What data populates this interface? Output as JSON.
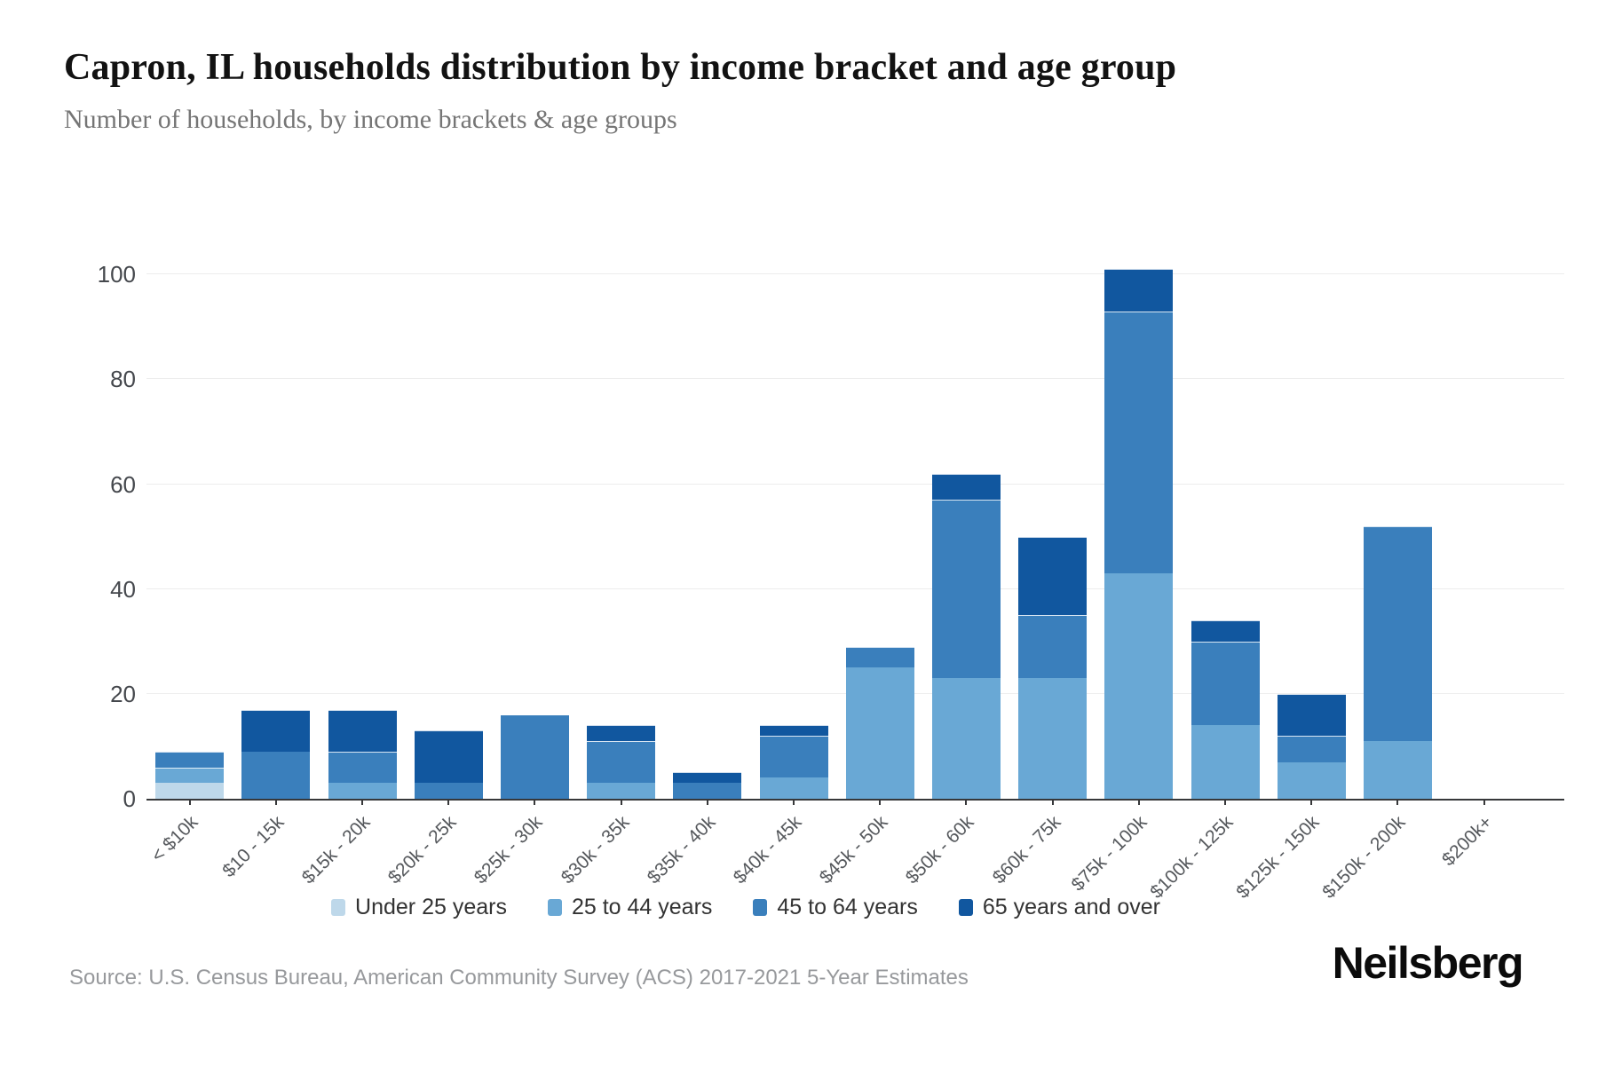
{
  "header": {
    "title": "Capron, IL households distribution by income bracket and age group",
    "subtitle": "Number of households, by income brackets & age groups"
  },
  "chart_data": {
    "type": "bar",
    "stacked": true,
    "categories": [
      "< $10k",
      "$10 - 15k",
      "$15k - 20k",
      "$20k - 25k",
      "$25k - 30k",
      "$30k - 35k",
      "$35k - 40k",
      "$40k - 45k",
      "$45k - 50k",
      "$50k - 60k",
      "$60k - 75k",
      "$75k - 100k",
      "$100k - 125k",
      "$125k - 150k",
      "$150k - 200k",
      "$200k+"
    ],
    "series": [
      {
        "name": "Under 25 years",
        "color": "#bed8ea",
        "values": [
          3,
          0,
          0,
          0,
          0,
          0,
          0,
          0,
          0,
          0,
          0,
          0,
          0,
          0,
          0,
          0
        ]
      },
      {
        "name": "25 to 44 years",
        "color": "#69a8d5",
        "values": [
          3,
          0,
          3,
          0,
          0,
          3,
          0,
          4,
          25,
          23,
          23,
          43,
          14,
          7,
          11,
          0
        ]
      },
      {
        "name": "45 to 64 years",
        "color": "#3a7fbc",
        "values": [
          3,
          9,
          6,
          3,
          16,
          8,
          3,
          8,
          4,
          34,
          12,
          50,
          16,
          5,
          41,
          0
        ]
      },
      {
        "name": "65 years and over",
        "color": "#11579f",
        "values": [
          0,
          8,
          8,
          10,
          0,
          3,
          2,
          2,
          0,
          5,
          15,
          8,
          4,
          8,
          0,
          0
        ]
      }
    ],
    "totals": [
      9,
      17,
      17,
      13,
      16,
      14,
      5,
      14,
      29,
      62,
      50,
      101,
      34,
      20,
      52,
      0
    ],
    "ylabel": "",
    "xlabel": "",
    "ylim": [
      0,
      110
    ],
    "y_ticks": [
      0,
      20,
      40,
      60,
      80,
      100
    ],
    "grid": "horizontal",
    "legend_position": "bottom"
  },
  "footer": {
    "source": "Source: U.S. Census Bureau, American Community Survey (ACS) 2017-2021 5-Year Estimates",
    "brand": "Neilsberg"
  }
}
